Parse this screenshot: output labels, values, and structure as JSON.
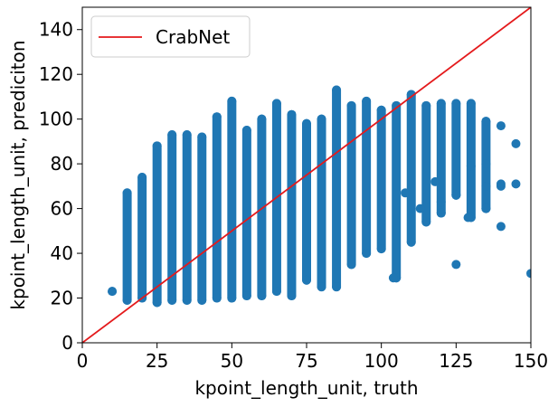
{
  "chart_data": {
    "type": "scatter",
    "title": "",
    "xlabel": "kpoint_length_unit, truth",
    "ylabel": "kpoint_length_unit, prediciton",
    "xlim": [
      0,
      150
    ],
    "ylim": [
      0,
      150
    ],
    "xticks": [
      0,
      25,
      50,
      75,
      100,
      125,
      150
    ],
    "yticks": [
      0,
      20,
      40,
      60,
      80,
      100,
      120,
      140
    ],
    "grid": false,
    "legend": {
      "placement": "top-left",
      "entries": [
        {
          "label": "CrabNet",
          "color": "#e41a1c",
          "marker": "line"
        }
      ]
    },
    "reference_line": {
      "label": "CrabNet",
      "x": [
        0,
        150
      ],
      "y": [
        0,
        150
      ],
      "color": "#e41a1c"
    },
    "series": [
      {
        "color": "#1f77b4",
        "columns": [
          {
            "x": 10,
            "ymin": 23,
            "ymax": 23
          },
          {
            "x": 15,
            "ymin": 19,
            "ymax": 67
          },
          {
            "x": 20,
            "ymin": 20,
            "ymax": 74
          },
          {
            "x": 25,
            "ymin": 18,
            "ymax": 88
          },
          {
            "x": 30,
            "ymin": 19,
            "ymax": 93
          },
          {
            "x": 35,
            "ymin": 19,
            "ymax": 93
          },
          {
            "x": 40,
            "ymin": 19,
            "ymax": 92
          },
          {
            "x": 45,
            "ymin": 20,
            "ymax": 101
          },
          {
            "x": 50,
            "ymin": 20,
            "ymax": 108
          },
          {
            "x": 55,
            "ymin": 21,
            "ymax": 95
          },
          {
            "x": 60,
            "ymin": 21,
            "ymax": 100
          },
          {
            "x": 65,
            "ymin": 23,
            "ymax": 107
          },
          {
            "x": 70,
            "ymin": 21,
            "ymax": 102
          },
          {
            "x": 75,
            "ymin": 28,
            "ymax": 98
          },
          {
            "x": 80,
            "ymin": 25,
            "ymax": 100
          },
          {
            "x": 85,
            "ymin": 25,
            "ymax": 113
          },
          {
            "x": 90,
            "ymin": 35,
            "ymax": 106
          },
          {
            "x": 95,
            "ymin": 40,
            "ymax": 108
          },
          {
            "x": 100,
            "ymin": 42,
            "ymax": 104
          },
          {
            "x": 105,
            "ymin": 29,
            "ymax": 106
          },
          {
            "x": 110,
            "ymin": 45,
            "ymax": 111
          },
          {
            "x": 115,
            "ymin": 54,
            "ymax": 106
          },
          {
            "x": 120,
            "ymin": 58,
            "ymax": 107
          },
          {
            "x": 125,
            "ymin": 66,
            "ymax": 107
          },
          {
            "x": 130,
            "ymin": 56,
            "ymax": 107
          },
          {
            "x": 135,
            "ymin": 60,
            "ymax": 99
          }
        ],
        "points": [
          [
            104,
            29
          ],
          [
            125,
            35
          ],
          [
            129,
            56
          ],
          [
            140,
            52
          ],
          [
            135,
            60
          ],
          [
            135,
            70
          ],
          [
            140,
            70
          ],
          [
            140,
            71
          ],
          [
            145,
            71
          ],
          [
            145,
            89
          ],
          [
            140,
            97
          ],
          [
            150,
            31
          ],
          [
            135,
            80
          ],
          [
            125,
            66
          ],
          [
            120,
            58
          ],
          [
            120,
            63
          ],
          [
            118,
            72
          ],
          [
            113,
            60
          ],
          [
            108,
            67
          ],
          [
            130,
            79
          ]
        ]
      }
    ]
  }
}
